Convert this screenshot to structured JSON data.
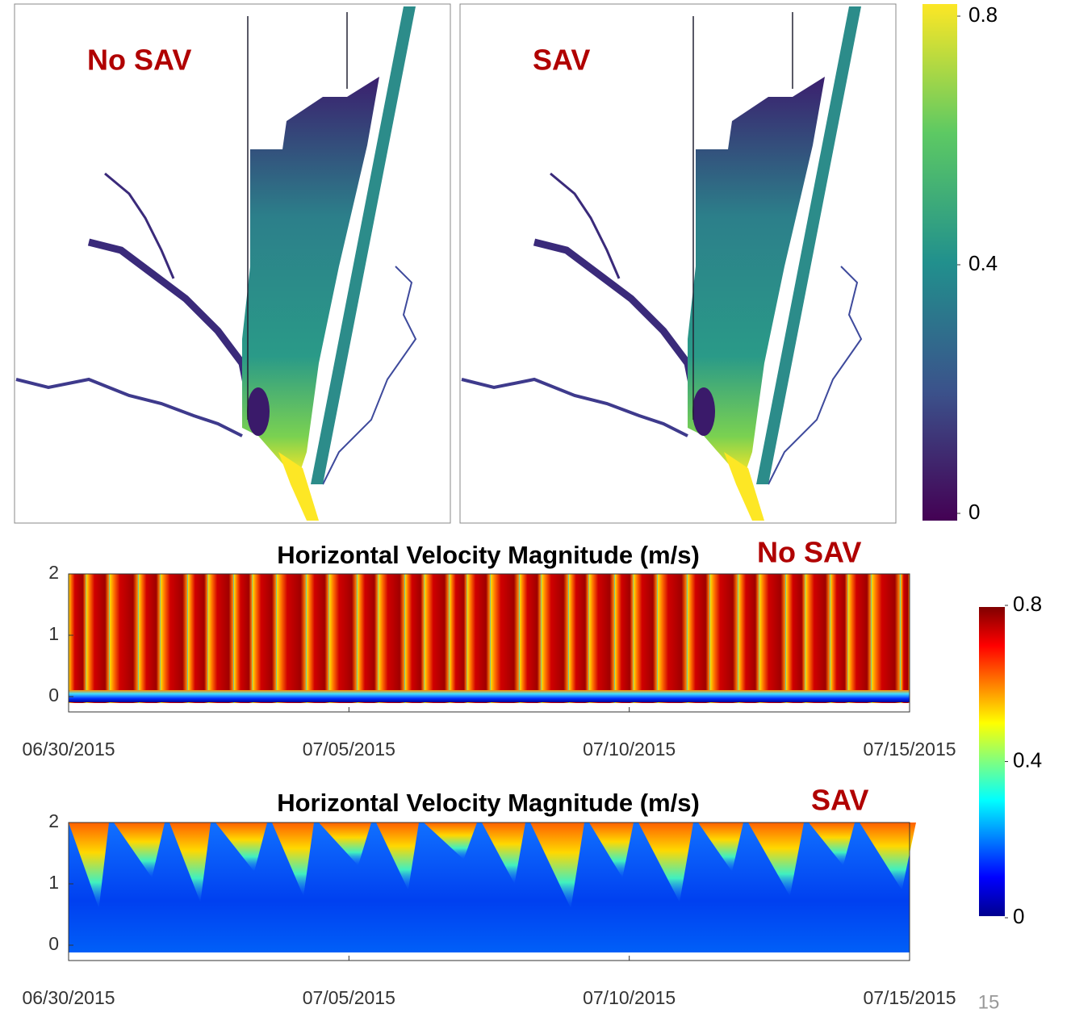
{
  "maps": [
    {
      "label": "No SAV"
    },
    {
      "label": "SAV"
    }
  ],
  "map_colorbar": {
    "lim": [
      0,
      0.8
    ],
    "ticks": [
      0,
      0.4,
      0.8
    ]
  },
  "velocity_colorbar": {
    "lim": [
      0,
      0.8
    ],
    "ticks": [
      0,
      0.4,
      0.8
    ]
  },
  "chart_data": [
    {
      "type": "heatmap",
      "title": "Horizontal Velocity Magnitude (m/s)",
      "tag": "No SAV",
      "ylim": [
        -0.25,
        2
      ],
      "yticks": [
        0,
        1,
        2
      ],
      "xlim": [
        "06/30/2015",
        "07/15/2015"
      ],
      "xticks": [
        "06/30/2015",
        "07/05/2015",
        "07/10/2015",
        "07/15/2015"
      ]
    },
    {
      "type": "heatmap",
      "title": "Horizontal Velocity Magnitude (m/s)",
      "tag": "SAV",
      "ylim": [
        -0.25,
        2
      ],
      "yticks": [
        0,
        1,
        2
      ],
      "xlim": [
        "06/30/2015",
        "07/15/2015"
      ],
      "xticks": [
        "06/30/2015",
        "07/05/2015",
        "07/10/2015",
        "07/15/2015"
      ]
    }
  ],
  "page_number": 15
}
